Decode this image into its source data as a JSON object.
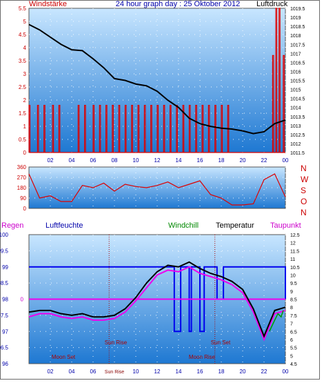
{
  "chart_data": [
    {
      "type": "line",
      "panel": "wind-pressure",
      "title": "24 hour graph day : 25 Oktober 2012",
      "ylabel_left": "Windstärke",
      "ylabel_right": "Luftdruck",
      "left_ylim": [
        0,
        5.5
      ],
      "left_ticks": [
        "0",
        "0.5",
        "1",
        "1.5",
        "2",
        "2.5",
        "3",
        "3.5",
        "4",
        "4.5",
        "5",
        "5.5"
      ],
      "right_ylim": [
        1011.5,
        1019.5
      ],
      "right_ticks": [
        "1011.5",
        "1012",
        "1012.5",
        "1013",
        "1013.5",
        "1014",
        "1014.5",
        "1015",
        "1015.5",
        "1016",
        "1016.5",
        "1017",
        "1017.5",
        "1018",
        "1018.5",
        "1019",
        "1019.5"
      ],
      "x_ticks": [
        "02",
        "04",
        "06",
        "08",
        "10",
        "12",
        "14",
        "16",
        "18",
        "20",
        "22",
        "00"
      ],
      "series": [
        {
          "name": "Luftdruck",
          "color": "#000000",
          "x": [
            0,
            1,
            2,
            3,
            4,
            5,
            6,
            7,
            8,
            9,
            10,
            11,
            12,
            13,
            14,
            15,
            16,
            17,
            18,
            19,
            20,
            21,
            22,
            23,
            24
          ],
          "values": [
            1018.6,
            1018.3,
            1017.9,
            1017.5,
            1017.2,
            1017.15,
            1016.7,
            1016.2,
            1015.6,
            1015.5,
            1015.3,
            1015.2,
            1014.9,
            1014.4,
            1014.0,
            1013.4,
            1013.1,
            1012.95,
            1012.85,
            1012.8,
            1012.7,
            1012.55,
            1012.65,
            1013.1,
            1013.3
          ]
        },
        {
          "name": "Windstärke",
          "color": "#dd0000",
          "x": [
            0,
            0.8,
            1.4,
            2.2,
            2.8,
            4.6,
            5.2,
            6.0,
            6.6,
            7.2,
            7.8,
            8.4,
            9.0,
            9.6,
            10.2,
            10.8,
            11.4,
            12.0,
            12.6,
            13.2,
            13.8,
            14.4,
            15.0,
            15.6,
            16.2,
            16.8,
            17.4,
            18.0,
            18.6,
            22.8,
            23.1,
            23.4,
            23.8
          ],
          "values": [
            1.8,
            1.8,
            1.8,
            1.8,
            1.8,
            1.8,
            1.8,
            1.8,
            1.8,
            1.8,
            1.8,
            1.8,
            1.8,
            1.8,
            1.8,
            1.8,
            1.8,
            1.8,
            1.8,
            1.8,
            1.8,
            1.8,
            1.8,
            1.8,
            1.8,
            1.8,
            1.8,
            1.8,
            1.8,
            3.7,
            5.5,
            5.5,
            3.7
          ]
        }
      ]
    },
    {
      "type": "line",
      "panel": "wind-direction",
      "ylim": [
        0,
        360
      ],
      "left_ticks": [
        "0",
        "90",
        "180",
        "270",
        "360"
      ],
      "right_labels": [
        "N",
        "W",
        "S",
        "O",
        "N"
      ],
      "series": [
        {
          "name": "Windrichtung",
          "color": "#dd0000",
          "x": [
            0,
            1,
            2,
            3,
            4,
            5,
            6,
            7,
            8,
            9,
            10,
            11,
            12,
            13,
            14,
            15,
            16,
            17,
            18,
            19,
            20,
            21,
            22,
            23,
            24
          ],
          "values": [
            300,
            90,
            110,
            60,
            60,
            200,
            180,
            220,
            150,
            210,
            190,
            180,
            200,
            230,
            180,
            210,
            240,
            120,
            90,
            30,
            30,
            40,
            250,
            300,
            100
          ]
        }
      ]
    },
    {
      "type": "line",
      "panel": "temperature-humidity",
      "labels": {
        "regen": "Regen",
        "luftfeuchte": "Luftfeuchte",
        "windchill": "Windchill",
        "temperatur": "Temperatur",
        "taupunkt": "Taupunkt"
      },
      "left_ylim": [
        96,
        100
      ],
      "left_ticks": [
        "96",
        "96.5",
        "97",
        "97.5",
        "98",
        "98.5",
        "99",
        "99.5",
        "100"
      ],
      "regen_ylim": [
        -0.5,
        0.5
      ],
      "regen_ticks": [
        "0"
      ],
      "right_ylim": [
        4.5,
        12.5
      ],
      "right_ticks": [
        "4.5",
        "5",
        "5.5",
        "6",
        "6.5",
        "7",
        "7.5",
        "8",
        "8.5",
        "9",
        "9.5",
        "10",
        "10.5",
        "11",
        "11.5",
        "12",
        "12.5"
      ],
      "x_ticks": [
        "02",
        "04",
        "06",
        "Sun Rise",
        "10",
        "12",
        "14",
        "16",
        "18",
        "20",
        "22",
        "00"
      ],
      "annotations": {
        "sun_rise_top": "Sun Rise",
        "sun_set": "Sun Set",
        "moon_set": "Moon Set",
        "moon_rise": "Moon Rise"
      },
      "series": [
        {
          "name": "Temperatur",
          "color": "#000000",
          "x": [
            0,
            1,
            2,
            3,
            4,
            5,
            6,
            7,
            8,
            9,
            10,
            11,
            12,
            13,
            14,
            15,
            16,
            17,
            18,
            19,
            20,
            21,
            22,
            23,
            24
          ],
          "values": [
            7.7,
            7.8,
            7.8,
            7.6,
            7.5,
            7.6,
            7.4,
            7.4,
            7.5,
            7.9,
            8.6,
            9.5,
            10.2,
            10.6,
            10.5,
            10.8,
            10.4,
            10.1,
            9.9,
            9.6,
            9.1,
            7.9,
            6.2,
            7.8,
            8.0
          ]
        },
        {
          "name": "Taupunkt",
          "color": "#ee00ee",
          "x": [
            0,
            1,
            2,
            3,
            4,
            5,
            6,
            7,
            8,
            9,
            10,
            11,
            12,
            13,
            14,
            15,
            16,
            17,
            18,
            19,
            20,
            21,
            22,
            23,
            24
          ],
          "values": [
            7.4,
            7.6,
            7.6,
            7.4,
            7.3,
            7.4,
            7.2,
            7.2,
            7.3,
            7.7,
            8.4,
            9.2,
            10.0,
            10.3,
            10.2,
            10.5,
            10.1,
            9.9,
            9.7,
            9.4,
            8.9,
            7.7,
            6.0,
            7.6,
            7.8
          ]
        },
        {
          "name": "Windchill",
          "color": "#009900",
          "x": [
            22.5,
            23.0,
            23.3,
            23.6,
            23.8
          ],
          "values": [
            6.5,
            7.2,
            7.6,
            7.4,
            7.8
          ]
        },
        {
          "name": "Luftfeuchte",
          "color": "#0000ee",
          "x": [
            0,
            13.2,
            13.6,
            14.2,
            15.0,
            15.2,
            16.0,
            16.4,
            17.2,
            17.6,
            18.2,
            24
          ],
          "values": [
            99,
            99,
            97,
            99,
            97,
            99,
            97,
            99,
            99,
            98,
            99,
            98
          ]
        },
        {
          "name": "Regen",
          "color": "#ee00ee",
          "x": [
            0,
            24
          ],
          "values": [
            0,
            0
          ]
        }
      ]
    }
  ]
}
